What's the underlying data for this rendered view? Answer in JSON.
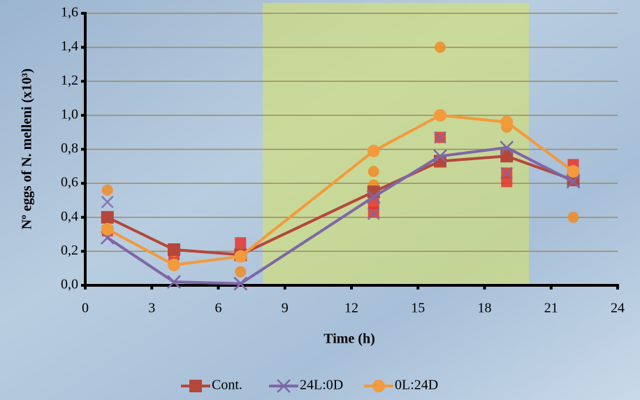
{
  "chart_data": {
    "type": "line",
    "x_label": "Time (h)",
    "y_label": "Nº eggs of N. melleni (x10³)",
    "xlim": [
      0,
      24
    ],
    "xticks": [
      0,
      3,
      6,
      9,
      12,
      15,
      18,
      21,
      24
    ],
    "ylim": [
      0,
      1.6
    ],
    "yticks": [
      {
        "value": 0,
        "label": "0,0"
      },
      {
        "value": 0.2,
        "label": "0,2"
      },
      {
        "value": 0.4,
        "label": "0,4"
      },
      {
        "value": 0.6,
        "label": "0,6"
      },
      {
        "value": 0.8,
        "label": "0,8"
      },
      {
        "value": 1.0,
        "label": "1,0"
      },
      {
        "value": 1.2,
        "label": "1,2"
      },
      {
        "value": 1.4,
        "label": "1,4"
      },
      {
        "value": 1.6,
        "label": "1,6"
      }
    ],
    "grid": true,
    "highlight": {
      "xrange": [
        8,
        20
      ],
      "color": "#d6e36a"
    },
    "legend": "bottom",
    "x": [
      1,
      4,
      7,
      13,
      16,
      19,
      22
    ],
    "series": [
      {
        "name": "Cont.",
        "color": "#b5473a",
        "marker": "square",
        "values": [
          0.4,
          0.21,
          0.18,
          0.55,
          0.73,
          0.76,
          0.62
        ],
        "replicate_color": "#e8342c",
        "replicates": {
          "x": [
            1,
            4,
            7,
            13,
            13,
            16,
            19,
            19,
            22
          ],
          "values": [
            0.32,
            0.18,
            0.25,
            0.48,
            0.43,
            0.87,
            0.61,
            0.66,
            0.71
          ]
        }
      },
      {
        "name": "24L:0D",
        "color": "#7e67a6",
        "marker": "cross",
        "values": [
          0.28,
          0.02,
          0.01,
          0.52,
          0.76,
          0.81,
          0.61
        ],
        "replicate_color": "#7e67a6",
        "replicates": {
          "x": [
            1,
            4,
            7,
            13,
            16,
            19,
            22
          ],
          "values": [
            0.49,
            0.02,
            0.01,
            0.42,
            0.87,
            0.66,
            0.62
          ]
        }
      },
      {
        "name": "0L:24D",
        "color": "#f29a3c",
        "marker": "circle",
        "values": [
          0.33,
          0.12,
          0.17,
          0.79,
          1.0,
          0.96,
          0.67
        ],
        "replicate_color": "#f08c28",
        "replicates": {
          "x": [
            1,
            4,
            7,
            13,
            13,
            16,
            19,
            22
          ],
          "values": [
            0.56,
            0.2,
            0.08,
            0.67,
            0.59,
            1.4,
            0.93,
            0.4
          ]
        }
      }
    ]
  }
}
